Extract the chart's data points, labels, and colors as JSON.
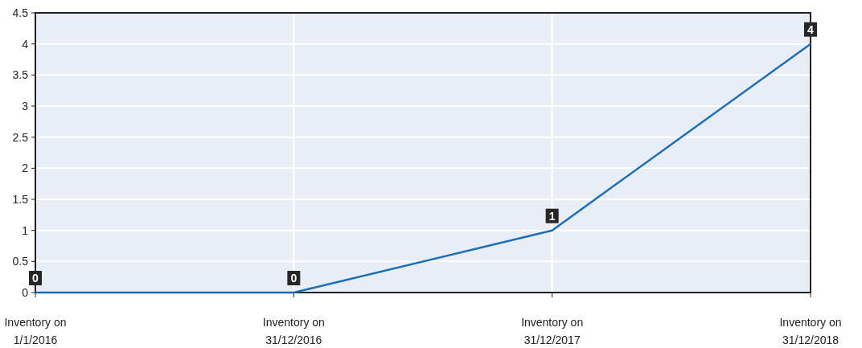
{
  "chart_data": {
    "type": "line",
    "categories": [
      "Inventory on 1/1/2016",
      "Inventory on 31/12/2016",
      "Inventory on 31/12/2017",
      "Inventory on 31/12/2018"
    ],
    "series": [
      {
        "color": "#1a6fb8",
        "values": [
          0,
          0,
          1,
          4
        ]
      }
    ],
    "ylim": [
      0,
      4.5
    ],
    "yticks": [
      0,
      0.5,
      1,
      1.5,
      2,
      2.5,
      3,
      3.5,
      4,
      4.5
    ],
    "grid": true,
    "data_labels": true,
    "marker": "none",
    "line_style": "solid"
  }
}
